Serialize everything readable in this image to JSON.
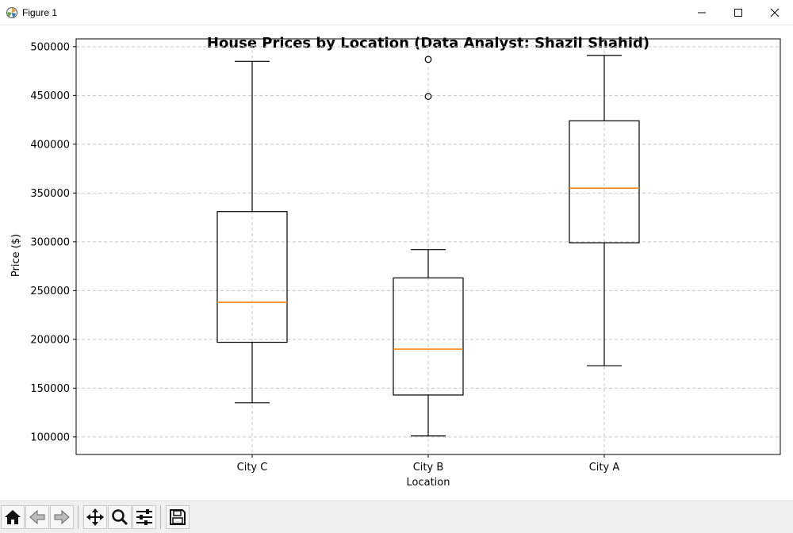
{
  "window": {
    "title": "Figure 1",
    "app_icon": "matplotlib-icon",
    "controls": [
      "minimize-icon",
      "maximize-icon",
      "close-icon"
    ]
  },
  "toolbar": {
    "buttons": [
      {
        "name": "home-button",
        "icon": "home-icon"
      },
      {
        "name": "back-button",
        "icon": "back-arrow-icon"
      },
      {
        "name": "forward-button",
        "icon": "forward-arrow-icon"
      },
      {
        "name": "pan-button",
        "icon": "move-icon"
      },
      {
        "name": "zoom-button",
        "icon": "magnifier-icon"
      },
      {
        "name": "configure-subplots-button",
        "icon": "sliders-icon"
      },
      {
        "name": "save-button",
        "icon": "floppy-disk-icon"
      }
    ]
  },
  "chart_data": {
    "type": "box",
    "title": "House Prices by Location (Data Analyst: Shazil Shahid)",
    "xlabel": "Location",
    "ylabel": "Price ($)",
    "ylim": [
      82000,
      508000
    ],
    "yticks": [
      100000,
      150000,
      200000,
      250000,
      300000,
      350000,
      400000,
      450000,
      500000
    ],
    "grid": true,
    "grid_style": "dashed",
    "categories": [
      "City C",
      "City B",
      "City A"
    ],
    "boxes": [
      {
        "label": "City C",
        "whisker_low": 135000,
        "q1": 197000,
        "median": 238000,
        "q3": 331000,
        "whisker_high": 485000,
        "outliers": []
      },
      {
        "label": "City B",
        "whisker_low": 101000,
        "q1": 143000,
        "median": 190000,
        "q3": 263000,
        "whisker_high": 292000,
        "outliers": [
          449000,
          487000
        ]
      },
      {
        "label": "City A",
        "whisker_low": 173000,
        "q1": 299000,
        "median": 355000,
        "q3": 424000,
        "whisker_high": 491000,
        "outliers": []
      }
    ],
    "colors": {
      "box": "#000000",
      "median": "#ff7f0e",
      "grid": "#c8c8c8"
    }
  }
}
